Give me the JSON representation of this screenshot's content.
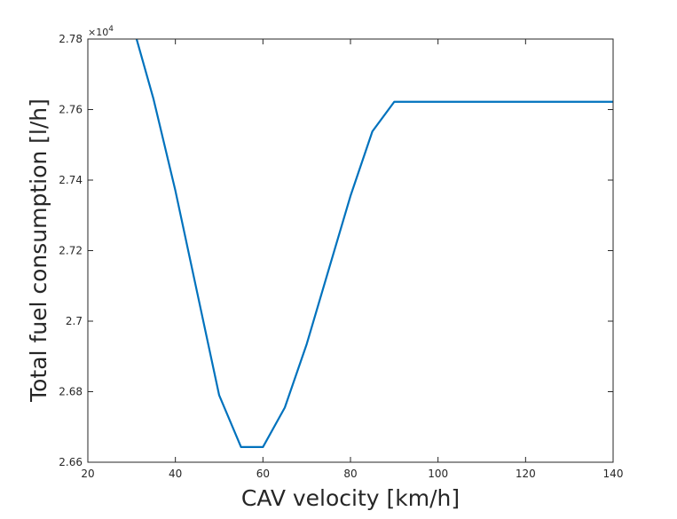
{
  "chart_data": {
    "type": "line",
    "title": "",
    "xlabel": "CAV velocity [km/h]",
    "ylabel": "Total fuel consumption [l/h]",
    "y_exponent_base": "×10",
    "y_exponent_power": "4",
    "xlim": [
      20,
      140
    ],
    "ylim": [
      2.66,
      2.78
    ],
    "xticks": [
      20,
      40,
      60,
      80,
      100,
      120,
      140
    ],
    "yticks": [
      2.66,
      2.68,
      2.7,
      2.72,
      2.74,
      2.76,
      2.78
    ],
    "xtick_labels": [
      "20",
      "40",
      "60",
      "80",
      "100",
      "120",
      "140"
    ],
    "ytick_labels": [
      "2.66",
      "2.68",
      "2.7",
      "2.72",
      "2.74",
      "2.76",
      "2.78"
    ],
    "grid": false,
    "box": true,
    "series": [
      {
        "color": "#0072bd",
        "x": [
          30,
          35,
          40,
          45,
          50,
          55,
          60,
          65,
          70,
          75,
          80,
          85,
          90,
          95,
          100,
          105,
          110,
          115,
          120,
          125,
          130,
          135,
          140
        ],
        "y": [
          2.785,
          2.763,
          2.737,
          2.708,
          2.679,
          2.6643,
          2.6643,
          2.6755,
          2.6935,
          2.7145,
          2.7355,
          2.7538,
          2.7622,
          2.7622,
          2.7622,
          2.7622,
          2.7622,
          2.7622,
          2.7622,
          2.7622,
          2.7622,
          2.7622,
          2.7622
        ]
      }
    ]
  }
}
